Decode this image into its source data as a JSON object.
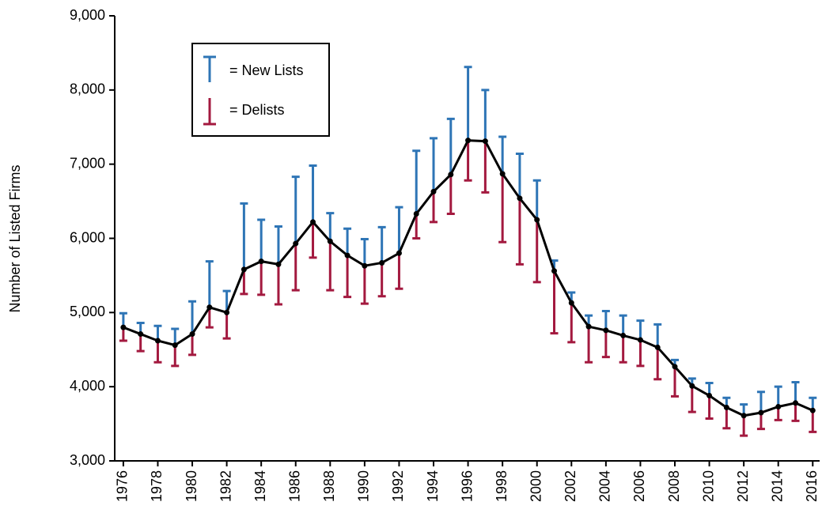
{
  "chart_data": {
    "type": "line",
    "ylabel": "Number of Listed Firms",
    "x": [
      1976,
      1977,
      1978,
      1979,
      1980,
      1981,
      1982,
      1983,
      1984,
      1985,
      1986,
      1987,
      1988,
      1989,
      1990,
      1991,
      1992,
      1993,
      1994,
      1995,
      1996,
      1997,
      1998,
      1999,
      2000,
      2001,
      2002,
      2003,
      2004,
      2005,
      2006,
      2007,
      2008,
      2009,
      2010,
      2011,
      2012,
      2013,
      2014,
      2015,
      2016
    ],
    "values": [
      4800,
      4710,
      4620,
      4560,
      4710,
      5070,
      5000,
      5580,
      5690,
      5650,
      5930,
      6220,
      5960,
      5770,
      5630,
      5670,
      5800,
      6330,
      6630,
      6860,
      7320,
      7310,
      6870,
      6540,
      6250,
      5560,
      5130,
      4810,
      4760,
      4690,
      4630,
      4530,
      4270,
      4010,
      3880,
      3720,
      3610,
      3650,
      3730,
      3780,
      3680
    ],
    "color": "#000000",
    "series": [
      {
        "name": "= New Lists",
        "color": "#2e75b6",
        "values": [
          190,
          150,
          200,
          220,
          440,
          620,
          290,
          890,
          560,
          510,
          900,
          760,
          380,
          360,
          360,
          480,
          620,
          850,
          720,
          750,
          990,
          690,
          500,
          600,
          530,
          140,
          140,
          150,
          260,
          270,
          260,
          310,
          90,
          100,
          170,
          130,
          150,
          280,
          270,
          280,
          170
        ]
      },
      {
        "name": "= Delists",
        "color": "#a3193f",
        "values": [
          180,
          230,
          290,
          280,
          280,
          270,
          350,
          330,
          450,
          540,
          630,
          480,
          660,
          560,
          510,
          450,
          480,
          330,
          410,
          530,
          540,
          690,
          920,
          890,
          840,
          840,
          530,
          480,
          360,
          360,
          350,
          430,
          400,
          350,
          310,
          280,
          270,
          220,
          180,
          240,
          290
        ]
      }
    ],
    "xlim": [
      1975.5,
      2016.4
    ],
    "xticks": [
      1976,
      1978,
      1980,
      1982,
      1984,
      1986,
      1988,
      1990,
      1992,
      1994,
      1996,
      1998,
      2000,
      2002,
      2004,
      2006,
      2008,
      2010,
      2012,
      2014,
      2016
    ],
    "ylim": [
      3000,
      9000
    ],
    "yticks": [
      {
        "value": 3000,
        "label": "3,000"
      },
      {
        "value": 4000,
        "label": "4,000"
      },
      {
        "value": 5000,
        "label": "5,000"
      },
      {
        "value": 6000,
        "label": "6,000"
      },
      {
        "value": 7000,
        "label": "7,000"
      },
      {
        "value": 8000,
        "label": "8,000"
      },
      {
        "value": 9000,
        "label": "9,000"
      }
    ]
  }
}
